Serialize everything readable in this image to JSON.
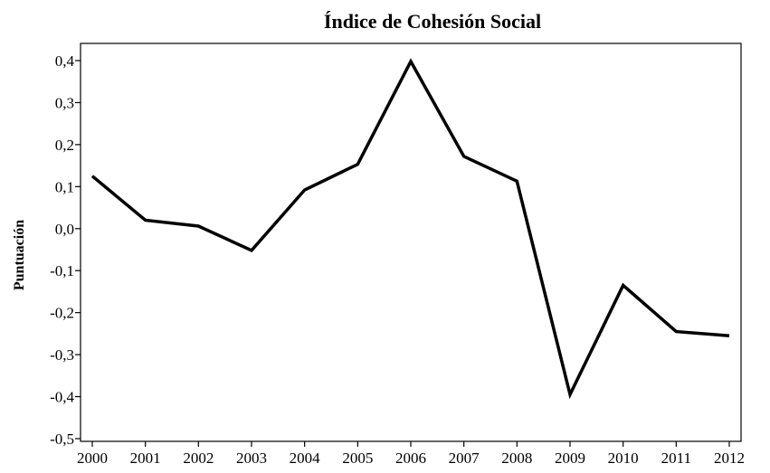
{
  "chart_data": {
    "type": "line",
    "title": "Índice de Cohesión Social",
    "xlabel": "",
    "ylabel": "Puntuación",
    "ylim": [
      -0.5,
      0.4
    ],
    "grid": false,
    "legend": "none",
    "line_color": "#000000",
    "categories": [
      "2000",
      "2001",
      "2002",
      "2003",
      "2004",
      "2005",
      "2006",
      "2007",
      "2008",
      "2009",
      "2010",
      "2011",
      "2012"
    ],
    "y_ticks": [
      "-0,5",
      "-0,4",
      "-0,3",
      "-0,2",
      "-0,1",
      "0,0",
      "0,1",
      "0,2",
      "0,3",
      "0,4"
    ],
    "y_tick_values": [
      -0.5,
      -0.4,
      -0.3,
      -0.2,
      -0.1,
      0.0,
      0.1,
      0.2,
      0.3,
      0.4
    ],
    "series": [
      {
        "values": [
          0.125,
          0.02,
          0.006,
          -0.052,
          0.092,
          0.153,
          0.398,
          0.172,
          0.113,
          -0.395,
          -0.135,
          -0.245,
          -0.255
        ]
      }
    ]
  }
}
